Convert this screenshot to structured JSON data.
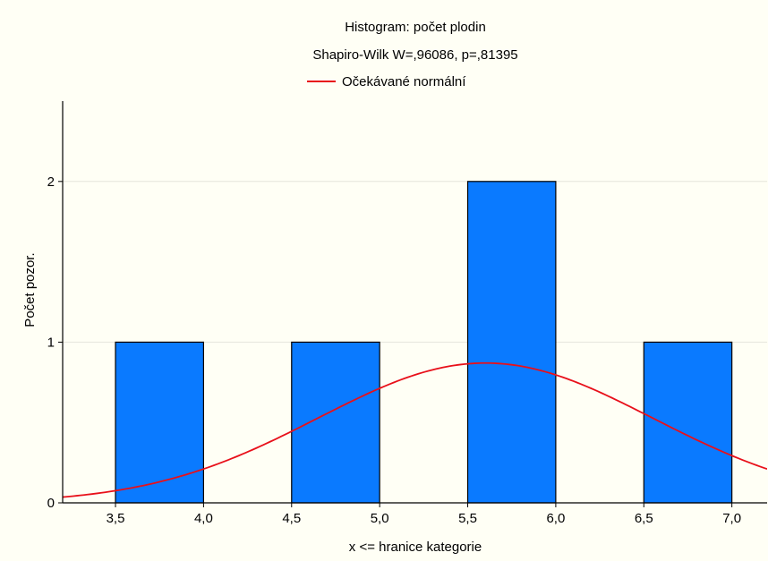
{
  "chart_data": {
    "type": "bar",
    "title": "Histogram: počet plodin",
    "subtitle": "Shapiro-Wilk W=,96086, p=,81395",
    "xlabel": "x <= hranice kategorie",
    "ylabel": "Počet pozor.",
    "xlim": [
      3.2,
      7.2
    ],
    "ylim": [
      0,
      2.5
    ],
    "x_ticks": [
      3.5,
      4.0,
      4.5,
      5.0,
      5.5,
      6.0,
      6.5,
      7.0
    ],
    "x_tick_labels": [
      "3,5",
      "4,0",
      "4,5",
      "5,0",
      "5,5",
      "6,0",
      "6,5",
      "7,0"
    ],
    "y_ticks": [
      0,
      1,
      2
    ],
    "y_tick_labels": [
      "0",
      "1",
      "2"
    ],
    "grid": true,
    "bars": [
      {
        "x0": 3.5,
        "x1": 4.0,
        "value": 1
      },
      {
        "x0": 4.0,
        "x1": 4.5,
        "value": 0
      },
      {
        "x0": 4.5,
        "x1": 5.0,
        "value": 1
      },
      {
        "x0": 5.0,
        "x1": 5.5,
        "value": 0
      },
      {
        "x0": 5.5,
        "x1": 6.0,
        "value": 2
      },
      {
        "x0": 6.0,
        "x1": 6.5,
        "value": 0
      },
      {
        "x0": 6.5,
        "x1": 7.0,
        "value": 1
      }
    ],
    "bar_color": "#0a7aff",
    "normal_curve": {
      "name": "Očekávané normální",
      "color": "#e8101a",
      "mean": 5.6,
      "sd": 0.95,
      "peak": 0.87
    },
    "legend_position": "top-center"
  }
}
